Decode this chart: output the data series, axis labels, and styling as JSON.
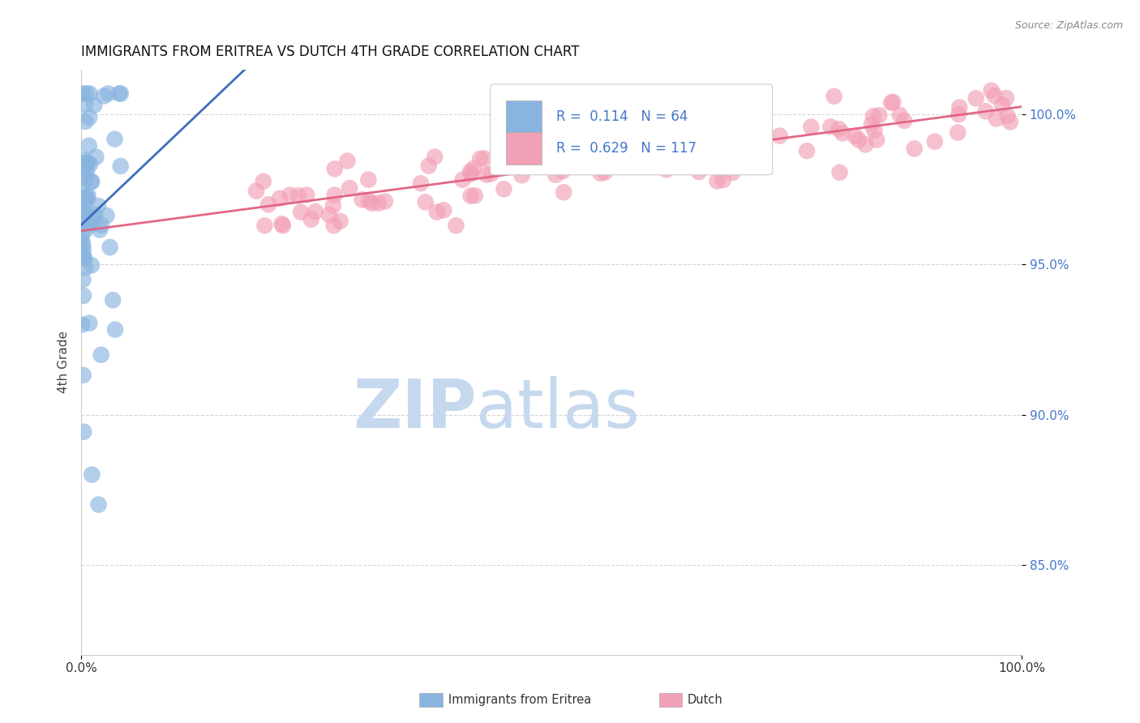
{
  "title": "IMMIGRANTS FROM ERITREA VS DUTCH 4TH GRADE CORRELATION CHART",
  "source_text": "Source: ZipAtlas.com",
  "ylabel": "4th Grade",
  "ytick_values": [
    0.85,
    0.9,
    0.95,
    1.0
  ],
  "ytick_labels": [
    "85.0%",
    "90.0%",
    "95.0%",
    "100.0%"
  ],
  "xlim": [
    0.0,
    1.0
  ],
  "ylim": [
    0.82,
    1.015
  ],
  "blue_R": 0.114,
  "blue_N": 64,
  "pink_R": 0.629,
  "pink_N": 117,
  "blue_color": "#89B4E0",
  "pink_color": "#F2A0B5",
  "blue_line_color": "#3366BB",
  "pink_line_color": "#E06080",
  "watermark_ZIP": "ZIP",
  "watermark_atlas": "atlas",
  "watermark_color": "#C5D8EE",
  "background_color": "#FFFFFF",
  "grid_color": "#CCCCCC",
  "title_color": "#111111",
  "source_color": "#888888",
  "ytick_color": "#4477CC",
  "xtick_color": "#333333"
}
